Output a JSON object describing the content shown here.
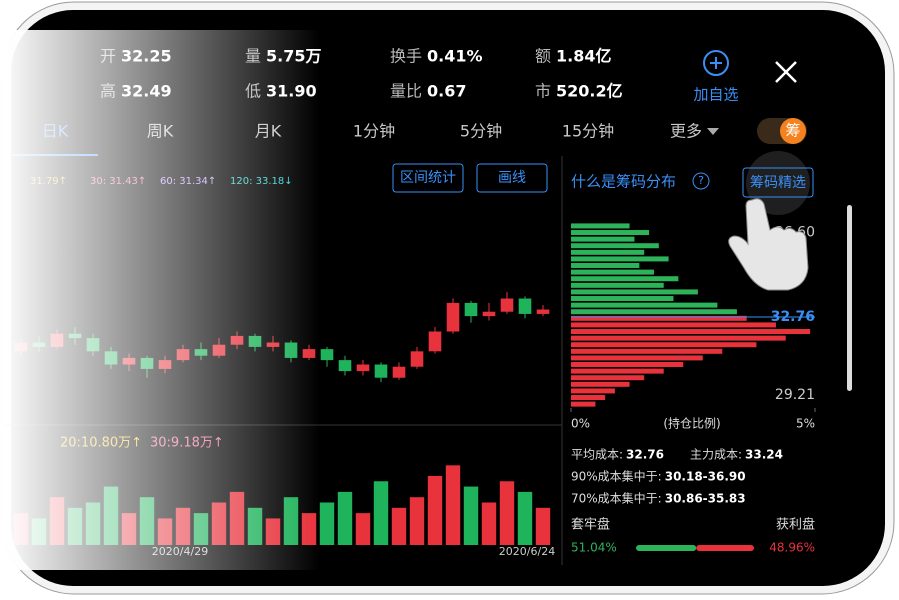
{
  "quote": [
    {
      "label": "开",
      "value": "32.25"
    },
    {
      "label": "量",
      "value": "5.75万"
    },
    {
      "label": "换手",
      "value": "0.41%"
    },
    {
      "label": "额",
      "value": "1.84亿"
    },
    {
      "label": "高",
      "value": "32.49"
    },
    {
      "label": "低",
      "value": "31.90"
    },
    {
      "label": "量比",
      "value": "0.67"
    },
    {
      "label": "市",
      "value": "520.2亿"
    }
  ],
  "add_watch": "加自选",
  "tabs": [
    "日K",
    "周K",
    "月K",
    "1分钟",
    "5分钟",
    "15分钟",
    "更多"
  ],
  "chip_badge": "筹",
  "ma_legend": [
    "31.79↑",
    "30: 31.43↑",
    "60: 31.34↑",
    "120: 33.18↓"
  ],
  "buttons": [
    "区间统计",
    "画线"
  ],
  "chip_title": "什么是筹码分布",
  "help": "?",
  "chip_select": "筹码精选",
  "volume_legend": [
    "20:10.80万↑",
    "30:9.18万↑"
  ],
  "dates": [
    "2020/4/29",
    "2020/6/24"
  ],
  "kline": {
    "ohlc": [
      [
        31.2,
        31.6,
        31.8,
        31.0
      ],
      [
        31.6,
        31.4,
        31.9,
        31.2
      ],
      [
        31.4,
        32.0,
        32.2,
        31.3
      ],
      [
        32.0,
        31.8,
        32.3,
        31.5
      ],
      [
        31.8,
        31.2,
        32.0,
        31.0
      ],
      [
        31.2,
        30.6,
        31.4,
        30.4
      ],
      [
        30.6,
        30.9,
        31.1,
        30.3
      ],
      [
        30.9,
        30.4,
        31.0,
        30.0
      ],
      [
        30.4,
        30.8,
        31.0,
        30.2
      ],
      [
        30.8,
        31.3,
        31.5,
        30.7
      ],
      [
        31.3,
        31.0,
        31.6,
        30.8
      ],
      [
        31.0,
        31.5,
        31.8,
        30.9
      ],
      [
        31.5,
        31.9,
        32.1,
        31.3
      ],
      [
        31.9,
        31.4,
        32.0,
        31.2
      ],
      [
        31.4,
        31.6,
        31.9,
        31.2
      ],
      [
        31.6,
        30.9,
        31.7,
        30.7
      ],
      [
        30.9,
        31.3,
        31.5,
        30.8
      ],
      [
        31.3,
        30.8,
        31.4,
        30.5
      ],
      [
        30.8,
        30.3,
        31.0,
        30.1
      ],
      [
        30.3,
        30.6,
        30.8,
        30.1
      ],
      [
        30.6,
        30.0,
        30.7,
        29.8
      ],
      [
        30.0,
        30.5,
        30.7,
        29.9
      ],
      [
        30.5,
        31.2,
        31.4,
        30.4
      ],
      [
        31.2,
        32.1,
        32.3,
        31.1
      ],
      [
        32.1,
        33.4,
        33.6,
        32.0
      ],
      [
        33.4,
        32.8,
        33.5,
        32.5
      ],
      [
        32.8,
        33.0,
        33.4,
        32.6
      ],
      [
        33.0,
        33.6,
        33.9,
        32.9
      ],
      [
        33.6,
        32.9,
        33.7,
        32.7
      ],
      [
        32.9,
        33.1,
        33.3,
        32.8
      ]
    ],
    "volume": [
      6,
      5,
      9,
      7,
      8,
      11,
      6,
      9,
      5,
      7,
      6,
      8,
      10,
      7,
      5,
      9,
      6,
      8,
      10,
      6,
      12,
      7,
      9,
      13,
      15,
      11,
      8,
      12,
      10,
      7
    ],
    "volume_ylim": [
      0,
      16
    ],
    "up_color": "#e8323c",
    "down_color": "#1fb35b"
  },
  "price_ticks": [
    {
      "value": 36.6,
      "label": "36.60"
    },
    {
      "value": 32.76,
      "label": "32.76"
    },
    {
      "value": 29.21,
      "label": "29.21"
    }
  ],
  "chips": {
    "prices": [
      36.9,
      36.6,
      36.3,
      36.0,
      35.7,
      35.4,
      35.1,
      34.8,
      34.5,
      34.2,
      33.9,
      33.6,
      33.3,
      33.0,
      32.7,
      32.4,
      32.1,
      31.8,
      31.5,
      31.2,
      30.9,
      30.6,
      30.3,
      30.0,
      29.7,
      29.4,
      29.1,
      28.8
    ],
    "series": [
      {
        "name": "套牢盘",
        "color": "#2db35a",
        "values": [
          1.2,
          1.6,
          1.3,
          1.8,
          1.5,
          2.0,
          1.4,
          1.7,
          2.2,
          1.9,
          2.6,
          2.1,
          3.0,
          3.4,
          null,
          null,
          null,
          null,
          null,
          null,
          null,
          null,
          null,
          null,
          null,
          null,
          null,
          null
        ]
      },
      {
        "name": "获利盘",
        "color": "#e8323c",
        "values": [
          null,
          null,
          null,
          null,
          null,
          null,
          null,
          null,
          null,
          null,
          null,
          null,
          null,
          null,
          3.6,
          4.2,
          4.9,
          4.4,
          3.8,
          3.1,
          2.7,
          2.3,
          1.9,
          1.5,
          1.2,
          0.9,
          0.7,
          0.5
        ]
      }
    ],
    "xlim": [
      0,
      5
    ],
    "xticks": [
      {
        "value": 0,
        "label": "0%"
      },
      {
        "value": 5,
        "label": "5%"
      }
    ],
    "axis_label": "(持仓比例)"
  },
  "costs": [
    {
      "label": "平均成本:",
      "value": "32.76"
    },
    {
      "label": "主力成本:",
      "value": "33.24"
    },
    {
      "label": "90%成本集中于:",
      "value": "30.18-36.90"
    },
    {
      "label": "70%成本集中于:",
      "value": "30.86-35.83"
    }
  ],
  "ratio": [
    {
      "value": 51.04,
      "label": "51.04%"
    },
    {
      "value": 48.96,
      "label": "48.96%"
    }
  ]
}
